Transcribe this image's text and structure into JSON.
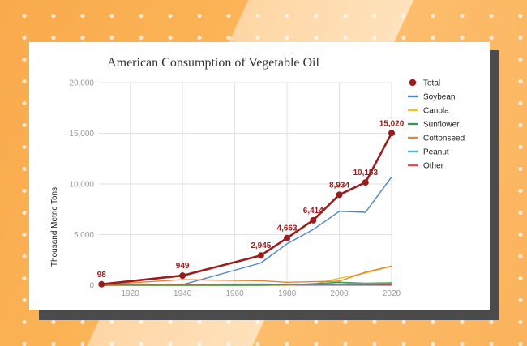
{
  "chart_data": {
    "type": "line",
    "title": "American Consumption of Vegetable Oil",
    "xlabel": "",
    "ylabel": "Thousand Metric Tons",
    "xlim": [
      1908,
      2020
    ],
    "ylim": [
      0,
      20000
    ],
    "x_ticks": [
      1920,
      1940,
      1960,
      1980,
      2000,
      2020
    ],
    "y_ticks": [
      "0",
      "5,000",
      "10,000",
      "15,000",
      "20,000"
    ],
    "y_tick_values": [
      0,
      5000,
      10000,
      15000,
      20000
    ],
    "grid": true,
    "legend_position": "right",
    "series": [
      {
        "name": "Total",
        "color": "#9b1c1c",
        "markers": true,
        "x": [
          1909,
          1940,
          1970,
          1980,
          1990,
          2000,
          2010,
          2020
        ],
        "y": [
          98,
          949,
          2945,
          4663,
          6414,
          8934,
          10153,
          15020
        ],
        "labels": [
          "98",
          "949",
          "2,945",
          "4,663",
          "6,414",
          "8,934",
          "10,153",
          "15,020"
        ]
      },
      {
        "name": "Soybean",
        "color": "#4a86c8",
        "x": [
          1909,
          1940,
          1970,
          1980,
          1990,
          2000,
          2010,
          2020
        ],
        "y": [
          0,
          60,
          2200,
          4100,
          5500,
          7300,
          7200,
          10700
        ]
      },
      {
        "name": "Canola",
        "color": "#e8c32e",
        "x": [
          1909,
          1940,
          1970,
          1980,
          1990,
          2000,
          2010,
          2020
        ],
        "y": [
          0,
          0,
          0,
          0,
          100,
          700,
          1200,
          1900
        ]
      },
      {
        "name": "Sunflower",
        "color": "#3d9a4a",
        "x": [
          1909,
          1940,
          1970,
          1980,
          1990,
          2000,
          2010,
          2020
        ],
        "y": [
          0,
          0,
          0,
          50,
          150,
          300,
          200,
          250
        ]
      },
      {
        "name": "Cottonseed",
        "color": "#e8822e",
        "x": [
          1909,
          1940,
          1970,
          1980,
          1990,
          2000,
          2010,
          2020
        ],
        "y": [
          60,
          550,
          450,
          300,
          350,
          400,
          1300,
          1900
        ]
      },
      {
        "name": "Peanut",
        "color": "#4bb6c9",
        "x": [
          1909,
          1940,
          1970,
          1980,
          1990,
          2000,
          2010,
          2020
        ],
        "y": [
          10,
          100,
          120,
          100,
          120,
          120,
          150,
          150
        ]
      },
      {
        "name": "Other",
        "color": "#d9534f",
        "x": [
          1909,
          1940,
          1970,
          1980,
          1990,
          2000,
          2010,
          2020
        ],
        "y": [
          20,
          80,
          50,
          40,
          40,
          40,
          60,
          100
        ]
      }
    ]
  }
}
